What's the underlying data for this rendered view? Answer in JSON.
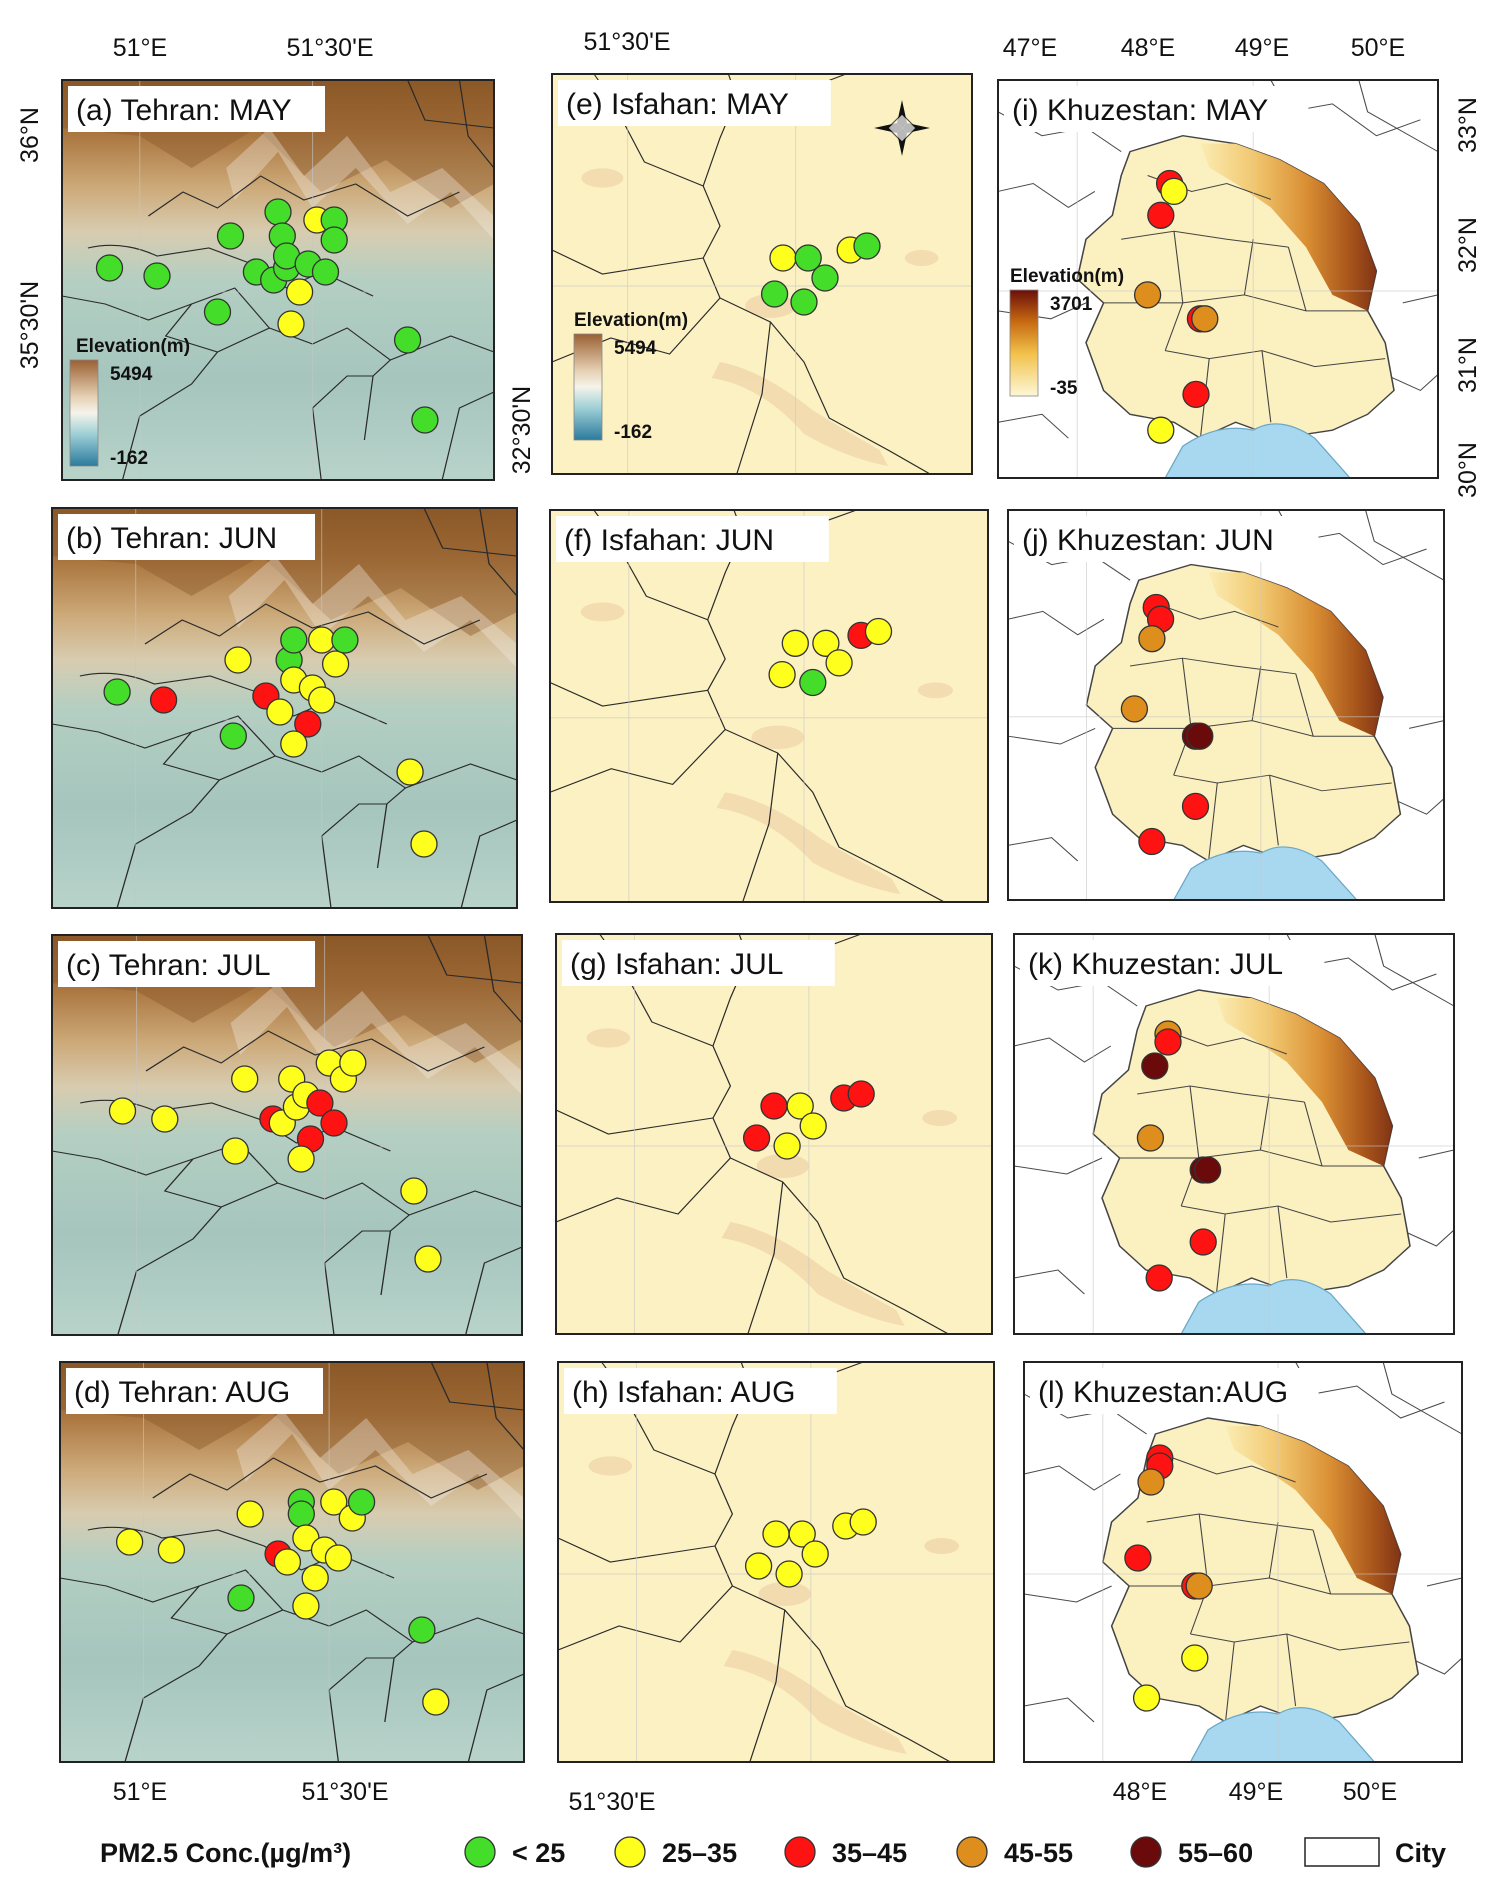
{
  "colors": {
    "lt25": "#44dd2a",
    "c25_35": "#ffff1e",
    "c35_45": "#ff1212",
    "c45_55": "#dd8e1c",
    "c55_60": "#6b0a0a",
    "water": "#a8d8ef",
    "plain": "#fbf1c2"
  },
  "columns": {
    "tehran": {
      "top_labels": [
        "51°E",
        "51°30'E"
      ],
      "bottom_labels": [
        "51°E",
        "51°30'E"
      ],
      "left_labels": [
        "36°N",
        "35°30'N"
      ]
    },
    "isfahan": {
      "top_labels": [
        "51°30'E"
      ],
      "bottom_labels": [
        "51°30'E"
      ],
      "left_labels": [
        "32°30'N"
      ]
    },
    "khuzestan": {
      "top_labels": [
        "47°E",
        "48°E",
        "49°E",
        "50°E"
      ],
      "bottom_labels": [
        "48°E",
        "49°E",
        "50°E"
      ],
      "right_labels": [
        "33°N",
        "32°N",
        "31°N",
        "30°N"
      ]
    }
  },
  "panels": [
    {
      "id": "a",
      "title": "(a) Tehran: MAY",
      "region": "tehran",
      "legend": {
        "title": "Elevation(m)",
        "max": "5494",
        "min": "-162"
      },
      "stations": [
        [
          0.11,
          0.47,
          "lt25"
        ],
        [
          0.22,
          0.49,
          "lt25"
        ],
        [
          0.36,
          0.58,
          "lt25"
        ],
        [
          0.39,
          0.39,
          "lt25"
        ],
        [
          0.45,
          0.48,
          "lt25"
        ],
        [
          0.49,
          0.5,
          "lt25"
        ],
        [
          0.5,
          0.33,
          "lt25"
        ],
        [
          0.51,
          0.39,
          "lt25"
        ],
        [
          0.52,
          0.47,
          "lt25"
        ],
        [
          0.52,
          0.44,
          "lt25"
        ],
        [
          0.55,
          0.53,
          "c25_35"
        ],
        [
          0.53,
          0.61,
          "c25_35"
        ],
        [
          0.57,
          0.46,
          "lt25"
        ],
        [
          0.61,
          0.48,
          "lt25"
        ],
        [
          0.59,
          0.35,
          "c25_35"
        ],
        [
          0.63,
          0.35,
          "lt25"
        ],
        [
          0.63,
          0.4,
          "lt25"
        ],
        [
          0.8,
          0.65,
          "lt25"
        ],
        [
          0.84,
          0.85,
          "lt25"
        ]
      ]
    },
    {
      "id": "b",
      "title": "(b) Tehran: JUN",
      "region": "tehran",
      "stations": [
        [
          0.14,
          0.46,
          "lt25"
        ],
        [
          0.24,
          0.48,
          "c35_45"
        ],
        [
          0.4,
          0.38,
          "c25_35"
        ],
        [
          0.39,
          0.57,
          "lt25"
        ],
        [
          0.46,
          0.47,
          "c35_45"
        ],
        [
          0.49,
          0.51,
          "c25_35"
        ],
        [
          0.51,
          0.38,
          "lt25"
        ],
        [
          0.52,
          0.33,
          "lt25"
        ],
        [
          0.52,
          0.43,
          "c25_35"
        ],
        [
          0.56,
          0.45,
          "c25_35"
        ],
        [
          0.58,
          0.33,
          "c25_35"
        ],
        [
          0.58,
          0.48,
          "c25_35"
        ],
        [
          0.61,
          0.39,
          "c25_35"
        ],
        [
          0.63,
          0.33,
          "lt25"
        ],
        [
          0.55,
          0.54,
          "c35_45"
        ],
        [
          0.52,
          0.59,
          "c25_35"
        ],
        [
          0.77,
          0.66,
          "c25_35"
        ],
        [
          0.8,
          0.84,
          "c25_35"
        ]
      ]
    },
    {
      "id": "c",
      "title": "(c) Tehran: JUL",
      "region": "tehran",
      "stations": [
        [
          0.15,
          0.44,
          "c25_35"
        ],
        [
          0.24,
          0.46,
          "c25_35"
        ],
        [
          0.41,
          0.36,
          "c25_35"
        ],
        [
          0.39,
          0.54,
          "c25_35"
        ],
        [
          0.47,
          0.46,
          "c35_45"
        ],
        [
          0.49,
          0.47,
          "c25_35"
        ],
        [
          0.51,
          0.36,
          "c25_35"
        ],
        [
          0.52,
          0.43,
          "c25_35"
        ],
        [
          0.54,
          0.4,
          "c25_35"
        ],
        [
          0.57,
          0.42,
          "c35_45"
        ],
        [
          0.59,
          0.32,
          "c25_35"
        ],
        [
          0.6,
          0.47,
          "c35_45"
        ],
        [
          0.62,
          0.36,
          "c25_35"
        ],
        [
          0.64,
          0.32,
          "c25_35"
        ],
        [
          0.55,
          0.51,
          "c35_45"
        ],
        [
          0.53,
          0.56,
          "c25_35"
        ],
        [
          0.77,
          0.64,
          "c25_35"
        ],
        [
          0.8,
          0.81,
          "c25_35"
        ]
      ]
    },
    {
      "id": "d",
      "title": "(d) Tehran: AUG",
      "region": "tehran",
      "stations": [
        [
          0.15,
          0.45,
          "c25_35"
        ],
        [
          0.24,
          0.47,
          "c25_35"
        ],
        [
          0.41,
          0.38,
          "c25_35"
        ],
        [
          0.39,
          0.59,
          "lt25"
        ],
        [
          0.47,
          0.48,
          "c35_45"
        ],
        [
          0.49,
          0.5,
          "c25_35"
        ],
        [
          0.52,
          0.35,
          "lt25"
        ],
        [
          0.52,
          0.38,
          "lt25"
        ],
        [
          0.53,
          0.44,
          "c25_35"
        ],
        [
          0.57,
          0.47,
          "c25_35"
        ],
        [
          0.59,
          0.35,
          "c25_35"
        ],
        [
          0.6,
          0.49,
          "c25_35"
        ],
        [
          0.63,
          0.39,
          "c25_35"
        ],
        [
          0.65,
          0.35,
          "lt25"
        ],
        [
          0.55,
          0.54,
          "c25_35"
        ],
        [
          0.53,
          0.61,
          "c25_35"
        ],
        [
          0.78,
          0.67,
          "lt25"
        ],
        [
          0.81,
          0.85,
          "c25_35"
        ]
      ]
    },
    {
      "id": "e",
      "title": "(e) Isfahan: MAY",
      "region": "isfahan",
      "legend": {
        "title": "Elevation(m)",
        "max": "5494",
        "min": "-162"
      },
      "stations": [
        [
          0.55,
          0.46,
          "c25_35"
        ],
        [
          0.61,
          0.46,
          "lt25"
        ],
        [
          0.65,
          0.51,
          "lt25"
        ],
        [
          0.71,
          0.44,
          "c25_35"
        ],
        [
          0.75,
          0.43,
          "lt25"
        ],
        [
          0.53,
          0.55,
          "lt25"
        ],
        [
          0.6,
          0.57,
          "lt25"
        ]
      ]
    },
    {
      "id": "f",
      "title": "(f) Isfahan: JUN",
      "region": "isfahan",
      "stations": [
        [
          0.56,
          0.34,
          "c25_35"
        ],
        [
          0.63,
          0.34,
          "c25_35"
        ],
        [
          0.66,
          0.39,
          "c25_35"
        ],
        [
          0.71,
          0.32,
          "c35_45"
        ],
        [
          0.75,
          0.31,
          "c25_35"
        ],
        [
          0.53,
          0.42,
          "c25_35"
        ],
        [
          0.6,
          0.44,
          "lt25"
        ]
      ]
    },
    {
      "id": "g",
      "title": "(g) Isfahan: JUL",
      "region": "isfahan",
      "stations": [
        [
          0.5,
          0.43,
          "c35_45"
        ],
        [
          0.56,
          0.43,
          "c25_35"
        ],
        [
          0.59,
          0.48,
          "c25_35"
        ],
        [
          0.66,
          0.41,
          "c35_45"
        ],
        [
          0.7,
          0.4,
          "c35_45"
        ],
        [
          0.46,
          0.51,
          "c35_45"
        ],
        [
          0.53,
          0.53,
          "c25_35"
        ]
      ]
    },
    {
      "id": "h",
      "title": "(h) Isfahan: AUG",
      "region": "isfahan",
      "stations": [
        [
          0.5,
          0.43,
          "c25_35"
        ],
        [
          0.56,
          0.43,
          "c25_35"
        ],
        [
          0.59,
          0.48,
          "c25_35"
        ],
        [
          0.66,
          0.41,
          "c25_35"
        ],
        [
          0.7,
          0.4,
          "c25_35"
        ],
        [
          0.46,
          0.51,
          "c25_35"
        ],
        [
          0.53,
          0.53,
          "c25_35"
        ]
      ]
    },
    {
      "id": "i",
      "title": "(i) Khuzestan: MAY",
      "region": "khuzestan",
      "legend": {
        "title": "Elevation(m)",
        "max": "3701",
        "min": "-35"
      },
      "stations": [
        [
          0.39,
          0.26,
          "c35_45"
        ],
        [
          0.4,
          0.28,
          "c25_35"
        ],
        [
          0.37,
          0.34,
          "c35_45"
        ],
        [
          0.34,
          0.54,
          "c45_55"
        ],
        [
          0.46,
          0.6,
          "c35_45"
        ],
        [
          0.47,
          0.6,
          "c45_55"
        ],
        [
          0.45,
          0.79,
          "c35_45"
        ],
        [
          0.37,
          0.88,
          "c25_35"
        ]
      ]
    },
    {
      "id": "j",
      "title": "(j) Khuzestan: JUN",
      "region": "khuzestan",
      "stations": [
        [
          0.34,
          0.25,
          "c35_45"
        ],
        [
          0.35,
          0.28,
          "c35_45"
        ],
        [
          0.33,
          0.33,
          "c45_55"
        ],
        [
          0.29,
          0.51,
          "c45_55"
        ],
        [
          0.43,
          0.58,
          "c55_60"
        ],
        [
          0.44,
          0.58,
          "c55_60"
        ],
        [
          0.43,
          0.76,
          "c35_45"
        ],
        [
          0.33,
          0.85,
          "c35_45"
        ]
      ]
    },
    {
      "id": "k",
      "title": "(k) Khuzestan: JUL",
      "region": "khuzestan",
      "stations": [
        [
          0.35,
          0.25,
          "c45_55"
        ],
        [
          0.35,
          0.27,
          "c35_45"
        ],
        [
          0.32,
          0.33,
          "c55_60"
        ],
        [
          0.31,
          0.51,
          "c45_55"
        ],
        [
          0.43,
          0.59,
          "c55_60"
        ],
        [
          0.44,
          0.59,
          "c55_60"
        ],
        [
          0.43,
          0.77,
          "c35_45"
        ],
        [
          0.33,
          0.86,
          "c35_45"
        ]
      ]
    },
    {
      "id": "l",
      "title": "(l) Khuzestan:AUG",
      "region": "khuzestan",
      "stations": [
        [
          0.31,
          0.24,
          "c35_45"
        ],
        [
          0.31,
          0.26,
          "c35_45"
        ],
        [
          0.29,
          0.3,
          "c45_55"
        ],
        [
          0.26,
          0.49,
          "c35_45"
        ],
        [
          0.39,
          0.56,
          "c35_45"
        ],
        [
          0.4,
          0.56,
          "c45_55"
        ],
        [
          0.39,
          0.74,
          "c25_35"
        ],
        [
          0.28,
          0.84,
          "c25_35"
        ]
      ]
    }
  ],
  "legend": {
    "title": "PM2.5 Conc.(µg/m³)",
    "items": [
      {
        "key": "lt25",
        "label": "< 25"
      },
      {
        "key": "c25_35",
        "label": "25–35"
      },
      {
        "key": "c35_45",
        "label": "35–45"
      },
      {
        "key": "c45_55",
        "label": "45-55"
      },
      {
        "key": "c55_60",
        "label": "55–60"
      }
    ],
    "city_label": "City"
  }
}
